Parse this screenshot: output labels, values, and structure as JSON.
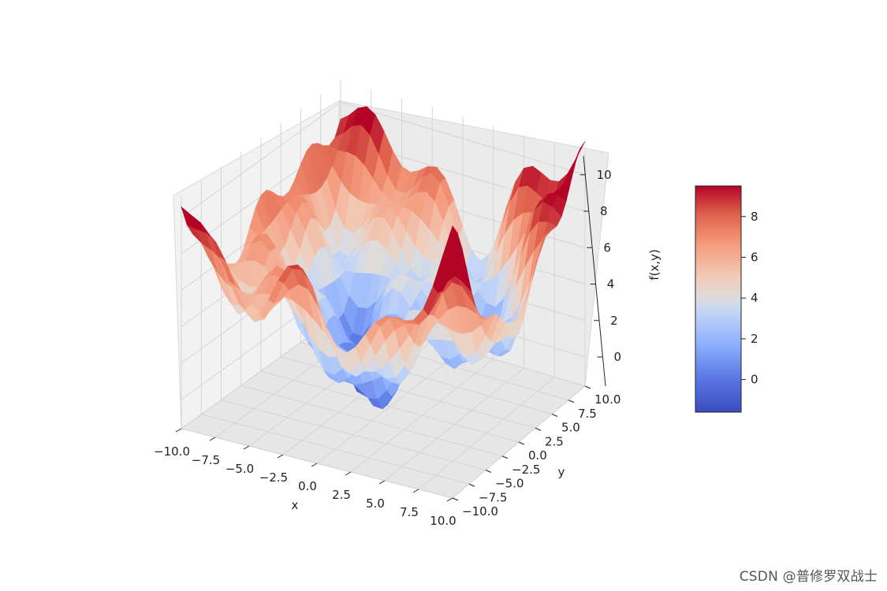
{
  "chart_data": {
    "type": "surface",
    "xlabel": "x",
    "ylabel": "y",
    "zlabel": "f(x,y)",
    "xlim": [
      -10,
      10
    ],
    "ylim": [
      -10,
      10
    ],
    "zlim": [
      -1.6,
      11.2
    ],
    "x_ticks": [
      "−10.0",
      "−7.5",
      "−5.0",
      "−2.5",
      "0.0",
      "2.5",
      "5.0",
      "7.5",
      "10.0"
    ],
    "y_ticks": [
      "−10.0",
      "−7.5",
      "−5.0",
      "−2.5",
      "0.0",
      "2.5",
      "5.0",
      "7.5",
      "10.0"
    ],
    "z_ticks": [
      "0",
      "2",
      "4",
      "6",
      "8",
      "10"
    ],
    "colorbar": {
      "colormap": "coolwarm",
      "range": [
        -1.6,
        9.5
      ],
      "ticks": [
        "0",
        "2",
        "4",
        "6",
        "8"
      ],
      "color_low": "#3b4cc0",
      "color_mid": "#dddcdc",
      "color_high": "#b40426"
    },
    "grid": true
  },
  "watermark": "CSDN @普修罗双战士"
}
